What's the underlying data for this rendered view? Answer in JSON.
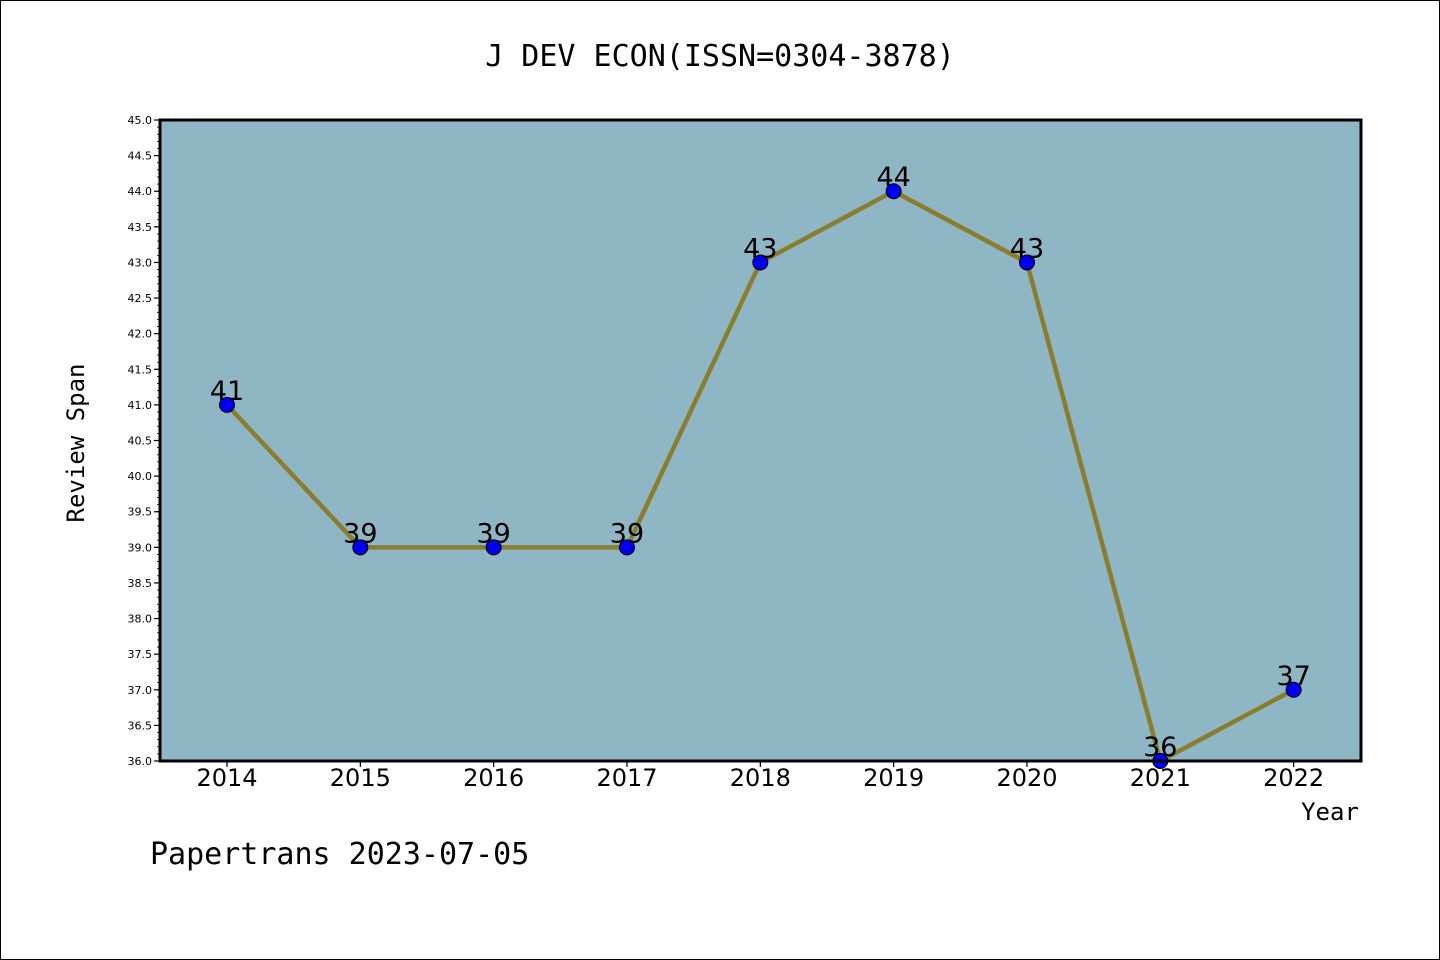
{
  "chart_data": {
    "type": "line",
    "title": "J DEV ECON(ISSN=0304-3878)",
    "xlabel": "Year",
    "ylabel": "Review Span",
    "categories": [
      "2014",
      "2015",
      "2016",
      "2017",
      "2018",
      "2019",
      "2020",
      "2021",
      "2022"
    ],
    "series": [
      {
        "values": [
          41,
          39,
          39,
          39,
          43,
          44,
          43,
          36,
          37
        ]
      }
    ],
    "data_labels": [
      "41",
      "39",
      "39",
      "39",
      "43",
      "44",
      "43",
      "36",
      "37"
    ],
    "ylim": [
      36.0,
      45.0
    ],
    "yticks": [
      "36.0",
      "36.5",
      "37.0",
      "37.5",
      "38.0",
      "38.5",
      "39.0",
      "39.5",
      "40.0",
      "40.5",
      "41.0",
      "41.5",
      "42.0",
      "42.5",
      "43.0",
      "43.5",
      "44.0",
      "44.5",
      "45.0"
    ],
    "grid": false,
    "colors": {
      "plot_background": "#8fb6c4",
      "line": "#8b7d2e",
      "marker": "#0000ee"
    }
  },
  "footer": "Papertrans 2023-07-05"
}
